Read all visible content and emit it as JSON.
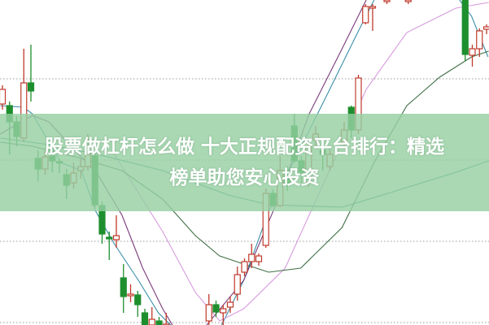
{
  "title": {
    "line1": "股票做杠杆怎么做 十大正规配资平台排行：精选",
    "line2": "榜单助您安心投资"
  },
  "colors": {
    "up": "#c0392b",
    "down": "#1e8f2e",
    "band": "#96d0a2",
    "grid": "#999999"
  },
  "chart_data": {
    "type": "candlestick",
    "title": "",
    "grid": true,
    "gridlines": [
      4,
      3,
      2,
      1
    ],
    "candle_fields": [
      "t",
      "open",
      "high",
      "low",
      "close"
    ],
    "candles": [
      [
        0,
        3.69,
        3.92,
        3.62,
        3.87
      ],
      [
        1,
        3.67,
        3.72,
        3.07,
        3.47
      ],
      [
        2,
        3.47,
        3.54,
        3.17,
        3.29
      ],
      [
        3,
        3.27,
        4.37,
        3.22,
        3.95
      ],
      [
        4,
        3.95,
        4.42,
        3.72,
        3.85
      ],
      [
        5,
        3.02,
        3.12,
        2.74,
        2.89
      ],
      [
        6,
        2.89,
        3.12,
        2.82,
        3.04
      ],
      [
        7,
        3.05,
        3.12,
        2.85,
        2.99
      ],
      [
        8,
        2.98,
        3.02,
        2.84,
        2.97
      ],
      [
        9,
        2.82,
        2.89,
        2.52,
        2.69
      ],
      [
        10,
        2.72,
        2.97,
        2.65,
        2.84
      ],
      [
        11,
        2.87,
        3.02,
        2.77,
        2.92
      ],
      [
        12,
        2.92,
        3.32,
        2.87,
        3.07
      ],
      [
        13,
        3.05,
        3.12,
        2.42,
        2.45
      ],
      [
        14,
        2.44,
        2.49,
        1.97,
        2.09
      ],
      [
        15,
        2.05,
        2.12,
        1.77,
        2.03
      ],
      [
        16,
        2.02,
        2.32,
        1.92,
        2.07
      ],
      [
        17,
        1.55,
        1.72,
        1.12,
        1.32
      ],
      [
        18,
        1.33,
        1.47,
        1.25,
        1.35
      ],
      [
        19,
        1.34,
        1.39,
        1.07,
        1.22
      ],
      [
        20,
        1.12,
        1.17,
        0.92,
        0.97
      ],
      [
        21,
        0.97,
        1.19,
        0.92,
        1.04
      ],
      [
        22,
        1.02,
        1.07,
        0.92,
        0.97
      ],
      [
        23,
        0.97,
        1.12,
        0.92,
        0.98
      ],
      [
        29,
        1.02,
        1.35,
        0.92,
        1.22
      ],
      [
        30,
        1.22,
        1.27,
        1.07,
        1.13
      ],
      [
        31,
        1.12,
        1.22,
        0.92,
        1.17
      ],
      [
        32,
        1.19,
        1.32,
        1.12,
        1.25
      ],
      [
        33,
        1.35,
        1.69,
        1.27,
        1.59
      ],
      [
        34,
        1.62,
        1.79,
        1.57,
        1.75
      ],
      [
        35,
        1.75,
        1.97,
        1.67,
        1.84
      ],
      [
        36,
        1.75,
        1.85,
        1.7,
        1.82
      ],
      [
        37,
        1.95,
        2.65,
        1.92,
        2.59
      ],
      [
        38,
        2.59,
        2.64,
        2.42,
        2.44
      ],
      [
        39,
        2.44,
        3.05,
        2.42,
        2.87
      ],
      [
        40,
        2.87,
        2.92,
        2.62,
        2.69
      ],
      [
        41,
        3.42,
        3.57,
        2.97,
        2.99
      ],
      [
        42,
        2.99,
        3.05,
        2.72,
        2.85
      ],
      [
        43,
        2.72,
        3.22,
        2.67,
        3.17
      ],
      [
        44,
        3.25,
        3.42,
        3.17,
        3.32
      ],
      [
        45,
        3.12,
        3.22,
        2.87,
        3.07
      ],
      [
        46,
        2.92,
        3.17,
        2.87,
        3.07
      ],
      [
        48,
        3.22,
        3.47,
        3.17,
        3.37
      ],
      [
        49,
        3.65,
        3.67,
        3.27,
        3.37
      ],
      [
        50,
        3.37,
        4.05,
        3.32,
        4.01
      ],
      [
        51,
        4.69,
        4.92,
        4.67,
        4.89
      ],
      [
        52,
        4.87,
        4.92,
        4.59,
        4.89
      ],
      [
        54,
        4.95,
        5.0,
        4.92,
        4.97
      ],
      [
        57,
        4.95,
        5.0,
        4.92,
        4.97
      ],
      [
        65,
        4.97,
        5.0,
        4.22,
        4.3
      ],
      [
        66,
        4.29,
        4.42,
        4.15,
        4.37
      ],
      [
        67,
        4.37,
        4.62,
        4.27,
        4.59
      ],
      [
        68,
        4.61,
        4.67,
        4.55,
        4.64
      ]
    ],
    "lines": [
      {
        "color": "#3a8fa8",
        "points": [
          [
            -0.3,
            3.67
          ],
          [
            2.9,
            3.65
          ],
          [
            4.2,
            3.57
          ],
          [
            8.2,
            2.97
          ],
          [
            11.1,
            2.87
          ],
          [
            13.1,
            2.37
          ],
          [
            15.7,
            1.97
          ],
          [
            19.1,
            1.52
          ],
          [
            21.9,
            1.12
          ],
          [
            24.2,
            0.92
          ],
          null,
          [
            30.5,
            0.92
          ],
          [
            33.9,
            1.52
          ],
          [
            37.4,
            2.37
          ],
          [
            45.4,
            3.77
          ],
          [
            49.9,
            4.57
          ],
          [
            52.2,
            4.97
          ],
          null,
          [
            64.2,
            4.97
          ],
          [
            65.9,
            4.77
          ],
          [
            68.2,
            4.27
          ]
        ]
      },
      {
        "color": "#7a3a7a",
        "points": [
          [
            -0.3,
            3.32
          ],
          [
            4.2,
            3.55
          ],
          [
            6.5,
            3.47
          ],
          [
            13.4,
            2.82
          ],
          [
            16.8,
            2.32
          ],
          [
            19.7,
            1.67
          ],
          [
            22.5,
            1.17
          ],
          [
            24.2,
            0.92
          ],
          null,
          [
            28.2,
            0.92
          ],
          [
            33.9,
            1.52
          ],
          [
            38.5,
            2.47
          ],
          [
            43.1,
            3.57
          ],
          [
            47.7,
            4.37
          ],
          [
            51.1,
            4.97
          ]
        ]
      },
      {
        "color": "#d79ade",
        "points": [
          [
            15.7,
            3.07
          ],
          [
            22.5,
            2.12
          ],
          [
            27.1,
            1.37
          ],
          [
            30.5,
            1.02
          ],
          [
            33.9,
            1.17
          ],
          [
            39.7,
            1.67
          ],
          [
            45.4,
            2.77
          ],
          [
            51.1,
            3.87
          ],
          [
            56.8,
            4.57
          ],
          [
            63.7,
            4.87
          ],
          [
            68.3,
            4.94
          ]
        ]
      },
      {
        "color": "#3f6f45",
        "points": [
          [
            -0.3,
            3.22
          ],
          [
            4.2,
            3.17
          ],
          [
            11.1,
            3.02
          ],
          [
            16.8,
            2.87
          ],
          [
            22.5,
            2.52
          ],
          [
            27.1,
            2.07
          ],
          [
            30.5,
            1.82
          ],
          [
            33.9,
            1.72
          ],
          [
            37.4,
            1.62
          ],
          [
            41.9,
            1.67
          ],
          [
            47.7,
            2.17
          ],
          [
            52.2,
            2.97
          ],
          [
            56.8,
            3.67
          ],
          [
            61.4,
            4.02
          ],
          [
            65.9,
            4.27
          ],
          [
            68.3,
            4.34
          ]
        ]
      },
      {
        "color": "#2f8a7c",
        "points": [
          [
            -0.3,
            3.27
          ],
          [
            6.5,
            3.19
          ],
          [
            13.4,
            3.07
          ],
          [
            22.5,
            2.87
          ],
          [
            31.7,
            2.57
          ],
          [
            37.4,
            2.45
          ],
          [
            47.7,
            2.42
          ],
          [
            53.4,
            2.57
          ],
          [
            63.7,
            2.85
          ],
          [
            68.3,
            2.99
          ]
        ]
      }
    ]
  }
}
